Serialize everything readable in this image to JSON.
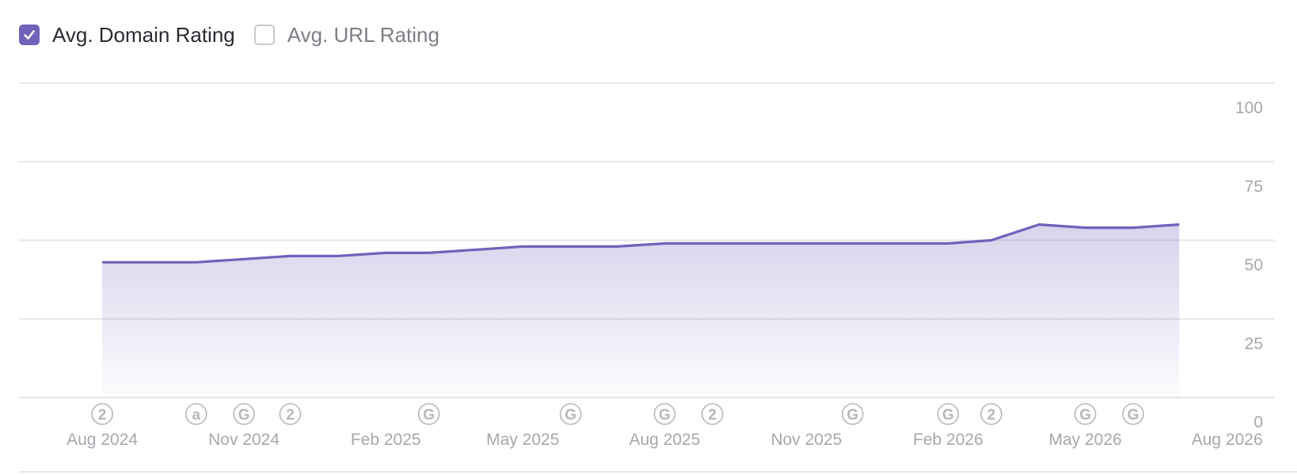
{
  "legend": {
    "items": [
      {
        "label": "Avg. Domain Rating",
        "checked": true
      },
      {
        "label": "Avg. URL Rating",
        "checked": false
      }
    ]
  },
  "colors": {
    "accent": "#6f63bb",
    "grid": "#e6e6ea",
    "tick_text": "#a7a7ae",
    "marker": "#b7b7bd"
  },
  "chart_data": {
    "type": "area",
    "series": [
      {
        "name": "Avg. Domain Rating",
        "x": [
          "2024-08-01",
          "2024-09-01",
          "2024-10-01",
          "2024-11-01",
          "2024-12-01",
          "2025-01-01",
          "2025-02-01",
          "2025-03-01",
          "2025-04-01",
          "2025-05-01",
          "2025-06-01",
          "2025-07-01",
          "2025-08-01",
          "2025-09-01",
          "2025-10-01",
          "2025-11-01",
          "2025-12-01",
          "2026-01-01",
          "2026-02-01",
          "2026-03-01",
          "2026-04-01",
          "2026-05-01",
          "2026-06-01",
          "2026-07-01"
        ],
        "values": [
          43,
          43,
          43,
          44,
          45,
          45,
          46,
          46,
          47,
          48,
          48,
          48,
          49,
          49,
          49,
          49,
          49,
          49,
          49,
          50,
          55,
          54,
          54,
          55
        ]
      }
    ],
    "x_ticks": [
      "Aug 2024",
      "Nov 2024",
      "Feb 2025",
      "May 2025",
      "Aug 2025",
      "Nov 2025",
      "Feb 2026",
      "May 2026",
      "Aug 2026"
    ],
    "x_tick_dates": [
      "2024-08-01",
      "2024-11-01",
      "2025-02-01",
      "2025-05-01",
      "2025-08-01",
      "2025-11-01",
      "2026-02-01",
      "2026-05-01",
      "2026-08-01"
    ],
    "y_ticks": [
      "100",
      "75",
      "50",
      "25",
      "0"
    ],
    "y_tick_values": [
      100,
      75,
      50,
      25,
      0
    ],
    "ylim": [
      0,
      100
    ],
    "xlim": [
      "2024-06-08",
      "2026-09-01"
    ],
    "grid": true,
    "y_axis_side": "right",
    "annotations": [
      {
        "date": "2024-08-01",
        "label": "2"
      },
      {
        "date": "2024-10-01",
        "label": "a"
      },
      {
        "date": "2024-11-01",
        "label": "G"
      },
      {
        "date": "2024-12-01",
        "label": "2"
      },
      {
        "date": "2025-03-01",
        "label": "G"
      },
      {
        "date": "2025-06-01",
        "label": "G"
      },
      {
        "date": "2025-08-01",
        "label": "G"
      },
      {
        "date": "2025-09-01",
        "label": "2"
      },
      {
        "date": "2025-12-01",
        "label": "G"
      },
      {
        "date": "2026-02-01",
        "label": "G"
      },
      {
        "date": "2026-03-01",
        "label": "2"
      },
      {
        "date": "2026-05-01",
        "label": "G"
      },
      {
        "date": "2026-06-01",
        "label": "G"
      }
    ]
  }
}
